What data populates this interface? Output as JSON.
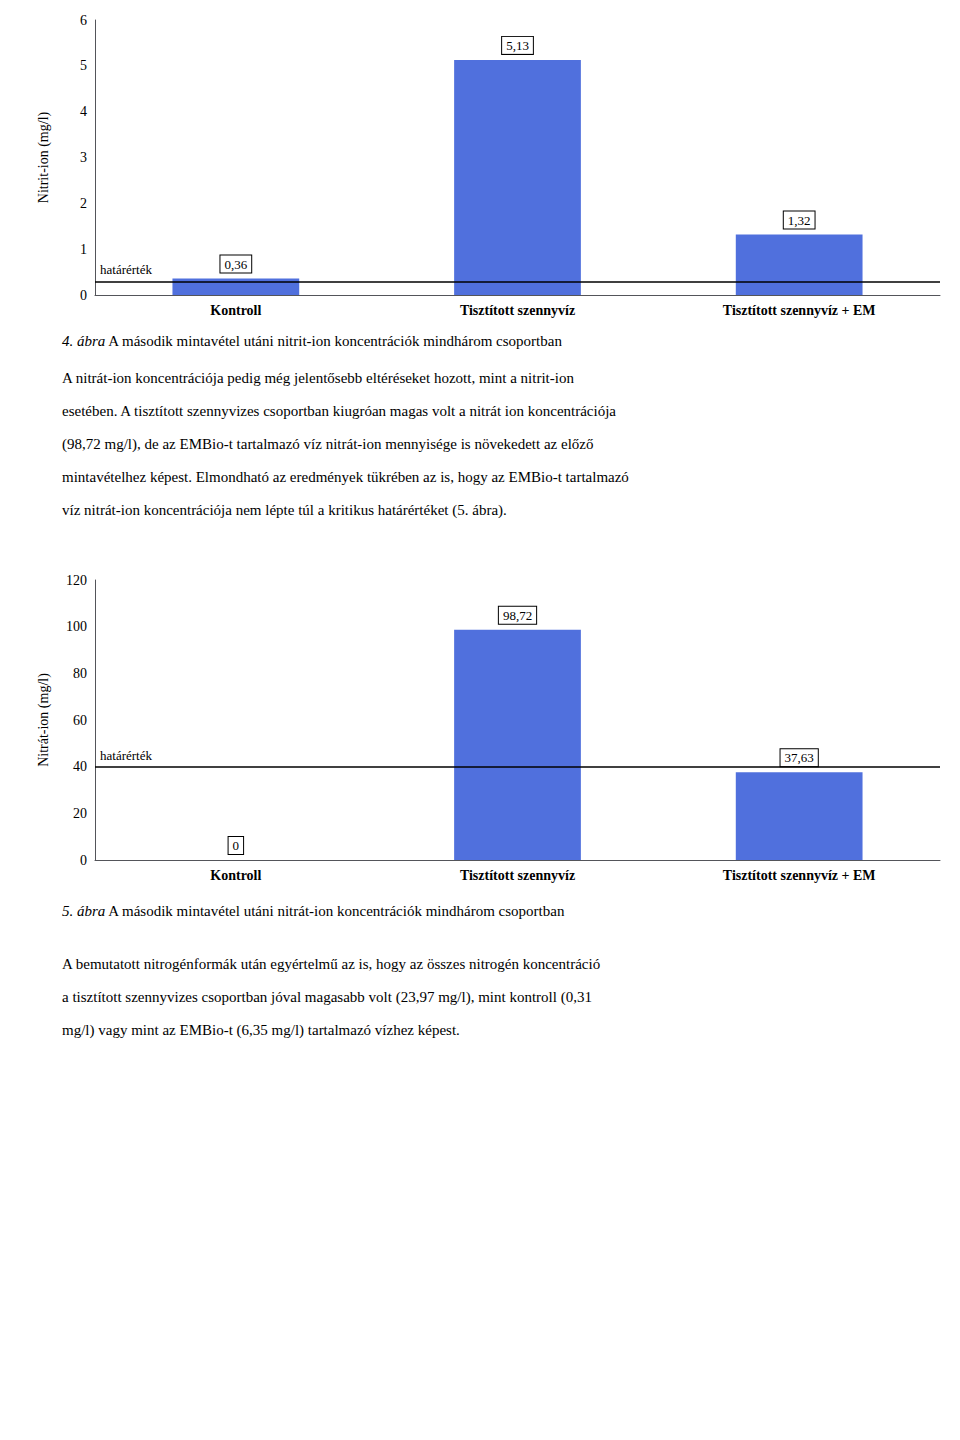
{
  "chart_data": [
    {
      "type": "bar",
      "categories": [
        "Kontroll",
        "Tisztított szennyvíz",
        "Tisztított szennyvíz + EM"
      ],
      "values": [
        0.36,
        5.13,
        1.32
      ],
      "value_labels": [
        "0,36",
        "5,13",
        "1,32"
      ],
      "data_labels": true,
      "ylabel": "Nitrit-ion (mg/l)",
      "ylim": [
        0,
        6
      ],
      "yticks": [
        0,
        1,
        2,
        3,
        4,
        5,
        6
      ],
      "reference_line": {
        "value": 0.3,
        "label": "határérték"
      },
      "caption": {
        "number": "4. ábra",
        "text": " A második mintavétel utáni nitrit-ion koncentrációk mindhárom csoportban"
      },
      "paragraph": [
        "A nitrát-ion koncentrációja pedig még jelentősebb eltéréseket hozott, mint a nitrit-ion",
        "esetében. A tisztított szennyvizes csoportban kiugróan magas volt a nitrát ion koncentrációja",
        "(98,72 mg/l), de az EMBio-t tartalmazó víz nitrát-ion mennyisége is növekedett az előző",
        "mintavételhez képest. Elmondható az eredmények tükrében az is, hogy az EMBio-t tartalmazó",
        "víz nitrát-ion koncentrációja nem lépte túl a kritikus határértéket (5. ábra)."
      ]
    },
    {
      "type": "bar",
      "categories": [
        "Kontroll",
        "Tisztított szennyvíz",
        "Tisztított szennyvíz + EM"
      ],
      "values": [
        0,
        98.72,
        37.63
      ],
      "value_labels": [
        "0",
        "98,72",
        "37,63"
      ],
      "data_labels": true,
      "ylabel": "Nitrát-ion (mg/l)",
      "ylim": [
        0,
        120
      ],
      "yticks": [
        0,
        20,
        40,
        60,
        80,
        100,
        120
      ],
      "reference_line": {
        "value": 40,
        "label": "határérték"
      },
      "caption": {
        "number": "5. ábra",
        "text": " A második mintavétel utáni nitrát-ion koncentrációk mindhárom csoportban"
      },
      "paragraph": [
        "A bemutatott nitrogénformák után egyértelmű az is, hogy az összes nitrogén koncentráció",
        "a tisztított szennyvizes csoportban jóval magasabb volt (23,97 mg/l), mint kontroll (0,31",
        "mg/l) vagy mint az EMBio-t (6,35 mg/l) tartalmazó vízhez képest."
      ]
    }
  ]
}
